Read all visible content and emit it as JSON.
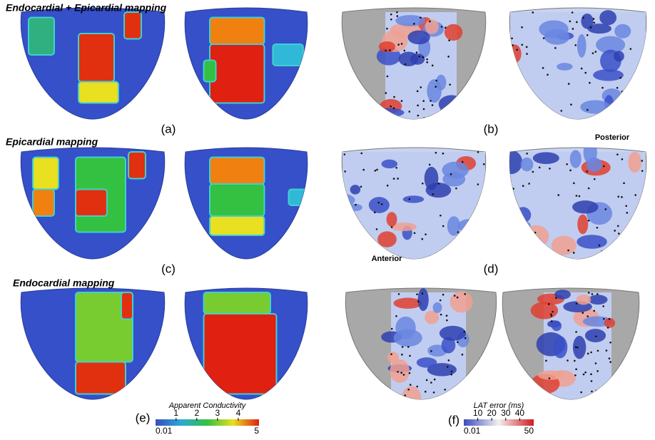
{
  "titles": {
    "top": "Endocardial + Epicardial mapping",
    "middle": "Epicardial mapping",
    "bottom": "Endocardial mapping"
  },
  "panels": [
    "(a)",
    "(b)",
    "(c)",
    "(d)",
    "(e)",
    "(f)"
  ],
  "views": {
    "posterior": "Posterior",
    "anterior": "Anterior"
  },
  "colorbars": [
    {
      "label": "Apparent Conductivity",
      "min": 0.01,
      "max": 5,
      "ticks": [
        1,
        2,
        3,
        4
      ]
    },
    {
      "label": "LAT error (ms)",
      "min": 0.01,
      "max": 50,
      "ticks": [
        10,
        20,
        30,
        40
      ]
    }
  ]
}
